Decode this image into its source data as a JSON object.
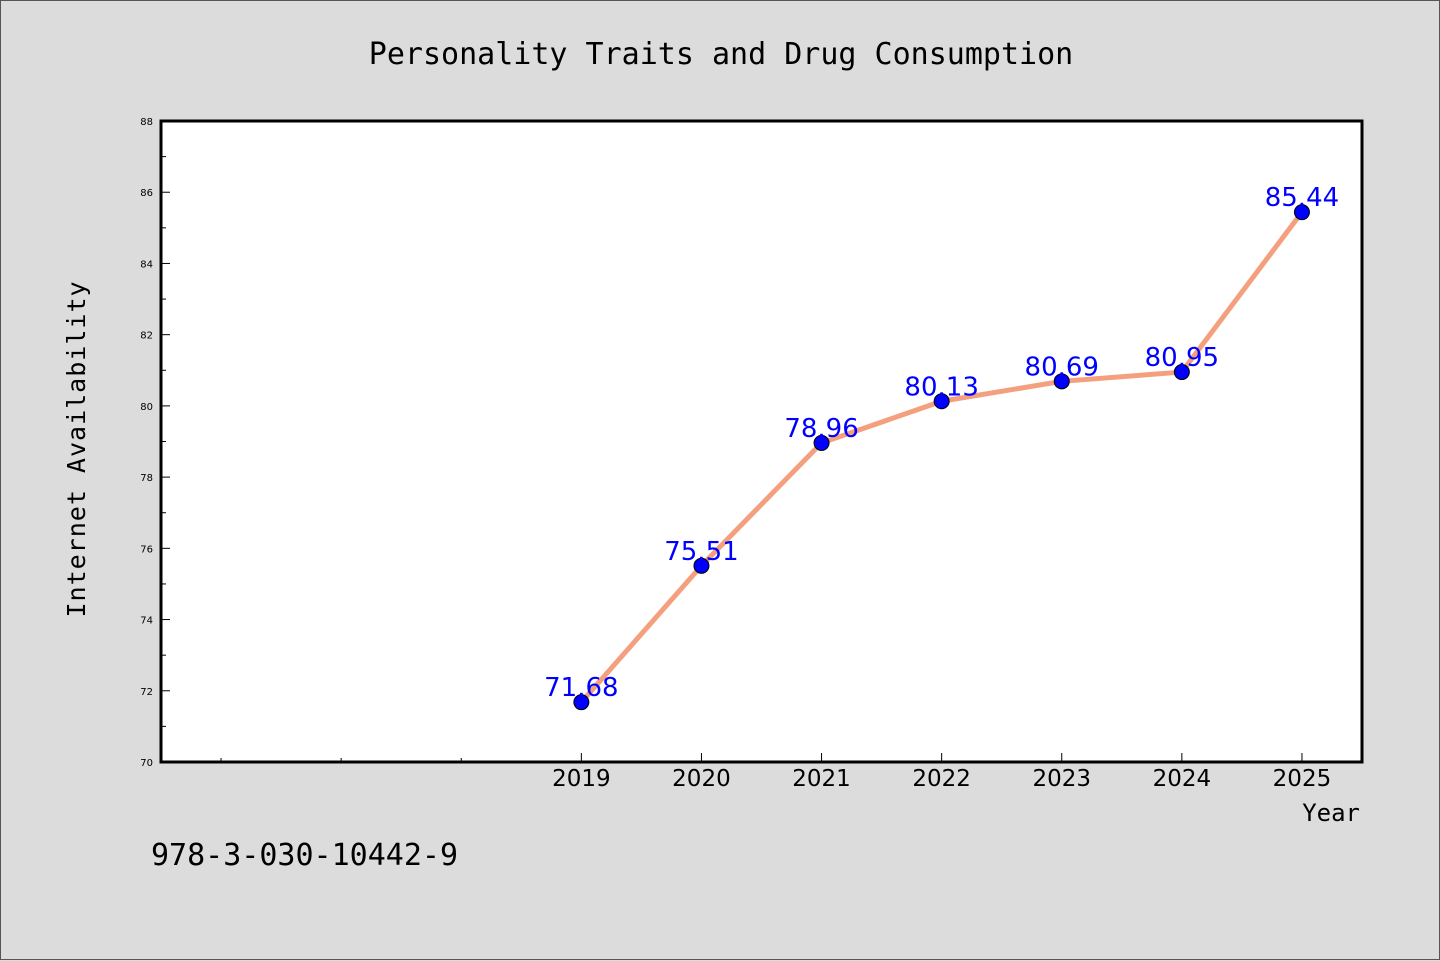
{
  "chart_data": {
    "type": "line",
    "title": "Personality Traits and Drug Consumption",
    "xlabel": "Year",
    "ylabel": "Internet Availability",
    "x": [
      2019,
      2020,
      2021,
      2022,
      2023,
      2024,
      2025
    ],
    "x_tick_labels": [
      "2019",
      "2020",
      "2021",
      "2022",
      "2023",
      "2024",
      "2025"
    ],
    "series": [
      {
        "values": [
          71.68,
          75.51,
          78.96,
          80.13,
          80.69,
          80.95,
          85.44
        ],
        "labels": [
          "71.68",
          "75.51",
          "78.96",
          "80.13",
          "80.69",
          "80.95",
          "85.44"
        ]
      }
    ],
    "ylim": [
      70,
      88
    ],
    "xlim": [
      2015.5,
      2025.5
    ],
    "y_ticks": [
      70,
      72,
      74,
      76,
      78,
      80,
      82,
      84,
      86,
      88
    ],
    "y_tick_labels": [
      "70",
      "72",
      "74",
      "76",
      "78",
      "80",
      "82",
      "84",
      "86",
      "88"
    ],
    "grid": false,
    "colors": {
      "line": "#f4a07f",
      "marker": "#0000ff",
      "data_label": "#0000ff",
      "background": "#dcdcdc",
      "plot_area": "#ffffff"
    }
  },
  "footnote": "978-3-030-10442-9"
}
